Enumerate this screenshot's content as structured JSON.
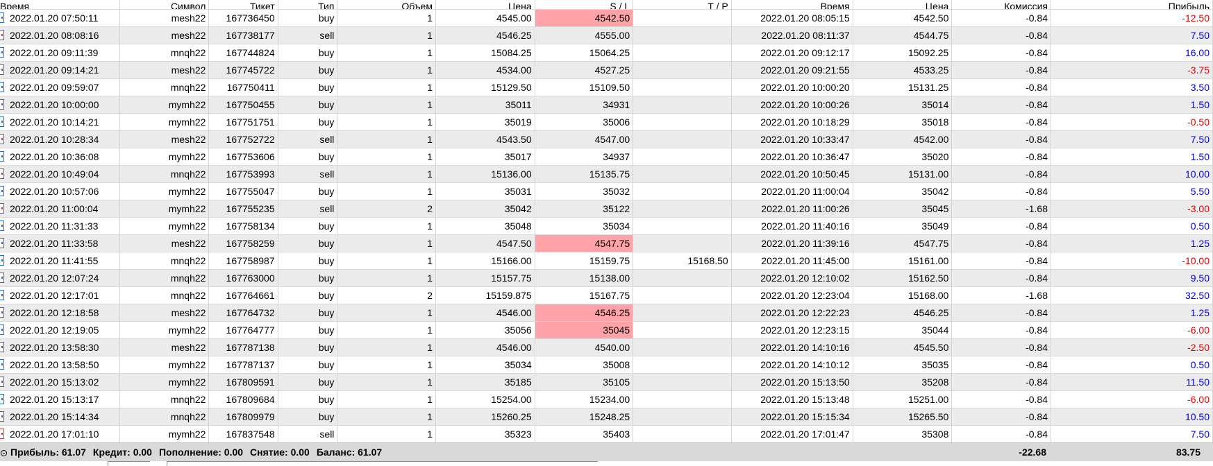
{
  "columns": [
    "Время",
    "Символ",
    "Тикет",
    "Тип",
    "Объем",
    "Цена",
    "S / L",
    "T / P",
    "Время",
    "Цена",
    "Комиссия",
    "Прибыль"
  ],
  "rows": [
    {
      "time": "2022.01.20 07:50:11",
      "symbol": "mesh22",
      "ticket": "167736450",
      "type": "buy",
      "volume": "1",
      "price": "4545.00",
      "sl": "4542.50",
      "tp": "",
      "close_time": "2022.01.20 08:05:15",
      "close_price": "4542.50",
      "commission": "-0.84",
      "profit": "-12.50",
      "sl_hit": true
    },
    {
      "time": "2022.01.20 08:08:16",
      "symbol": "mesh22",
      "ticket": "167738177",
      "type": "sell",
      "volume": "1",
      "price": "4546.25",
      "sl": "4555.00",
      "tp": "",
      "close_time": "2022.01.20 08:11:37",
      "close_price": "4544.75",
      "commission": "-0.84",
      "profit": "7.50",
      "sl_hit": false
    },
    {
      "time": "2022.01.20 09:11:39",
      "symbol": "mnqh22",
      "ticket": "167744824",
      "type": "buy",
      "volume": "1",
      "price": "15084.25",
      "sl": "15064.25",
      "tp": "",
      "close_time": "2022.01.20 09:12:17",
      "close_price": "15092.25",
      "commission": "-0.84",
      "profit": "16.00",
      "sl_hit": false
    },
    {
      "time": "2022.01.20 09:14:21",
      "symbol": "mesh22",
      "ticket": "167745722",
      "type": "buy",
      "volume": "1",
      "price": "4534.00",
      "sl": "4527.25",
      "tp": "",
      "close_time": "2022.01.20 09:21:55",
      "close_price": "4533.25",
      "commission": "-0.84",
      "profit": "-3.75",
      "sl_hit": false
    },
    {
      "time": "2022.01.20 09:59:07",
      "symbol": "mnqh22",
      "ticket": "167750411",
      "type": "buy",
      "volume": "1",
      "price": "15129.50",
      "sl": "15109.50",
      "tp": "",
      "close_time": "2022.01.20 10:00:20",
      "close_price": "15131.25",
      "commission": "-0.84",
      "profit": "3.50",
      "sl_hit": false
    },
    {
      "time": "2022.01.20 10:00:00",
      "symbol": "mymh22",
      "ticket": "167750455",
      "type": "buy",
      "volume": "1",
      "price": "35011",
      "sl": "34931",
      "tp": "",
      "close_time": "2022.01.20 10:00:26",
      "close_price": "35014",
      "commission": "-0.84",
      "profit": "1.50",
      "sl_hit": false
    },
    {
      "time": "2022.01.20 10:14:21",
      "symbol": "mymh22",
      "ticket": "167751751",
      "type": "buy",
      "volume": "1",
      "price": "35019",
      "sl": "35006",
      "tp": "",
      "close_time": "2022.01.20 10:18:29",
      "close_price": "35018",
      "commission": "-0.84",
      "profit": "-0.50",
      "sl_hit": false
    },
    {
      "time": "2022.01.20 10:28:34",
      "symbol": "mesh22",
      "ticket": "167752722",
      "type": "sell",
      "volume": "1",
      "price": "4543.50",
      "sl": "4547.00",
      "tp": "",
      "close_time": "2022.01.20 10:33:47",
      "close_price": "4542.00",
      "commission": "-0.84",
      "profit": "7.50",
      "sl_hit": false
    },
    {
      "time": "2022.01.20 10:36:08",
      "symbol": "mymh22",
      "ticket": "167753606",
      "type": "buy",
      "volume": "1",
      "price": "35017",
      "sl": "34937",
      "tp": "",
      "close_time": "2022.01.20 10:36:47",
      "close_price": "35020",
      "commission": "-0.84",
      "profit": "1.50",
      "sl_hit": false
    },
    {
      "time": "2022.01.20 10:49:04",
      "symbol": "mnqh22",
      "ticket": "167753993",
      "type": "sell",
      "volume": "1",
      "price": "15136.00",
      "sl": "15135.75",
      "tp": "",
      "close_time": "2022.01.20 10:50:45",
      "close_price": "15131.00",
      "commission": "-0.84",
      "profit": "10.00",
      "sl_hit": false
    },
    {
      "time": "2022.01.20 10:57:06",
      "symbol": "mymh22",
      "ticket": "167755047",
      "type": "buy",
      "volume": "1",
      "price": "35031",
      "sl": "35032",
      "tp": "",
      "close_time": "2022.01.20 11:00:04",
      "close_price": "35042",
      "commission": "-0.84",
      "profit": "5.50",
      "sl_hit": false
    },
    {
      "time": "2022.01.20 11:00:04",
      "symbol": "mymh22",
      "ticket": "167755235",
      "type": "sell",
      "volume": "2",
      "price": "35042",
      "sl": "35122",
      "tp": "",
      "close_time": "2022.01.20 11:00:26",
      "close_price": "35045",
      "commission": "-1.68",
      "profit": "-3.00",
      "sl_hit": false
    },
    {
      "time": "2022.01.20 11:31:33",
      "symbol": "mymh22",
      "ticket": "167758134",
      "type": "buy",
      "volume": "1",
      "price": "35048",
      "sl": "35034",
      "tp": "",
      "close_time": "2022.01.20 11:40:16",
      "close_price": "35049",
      "commission": "-0.84",
      "profit": "0.50",
      "sl_hit": false
    },
    {
      "time": "2022.01.20 11:33:58",
      "symbol": "mesh22",
      "ticket": "167758259",
      "type": "buy",
      "volume": "1",
      "price": "4547.50",
      "sl": "4547.75",
      "tp": "",
      "close_time": "2022.01.20 11:39:16",
      "close_price": "4547.75",
      "commission": "-0.84",
      "profit": "1.25",
      "sl_hit": true
    },
    {
      "time": "2022.01.20 11:41:55",
      "symbol": "mnqh22",
      "ticket": "167758987",
      "type": "buy",
      "volume": "1",
      "price": "15166.00",
      "sl": "15159.75",
      "tp": "15168.50",
      "close_time": "2022.01.20 11:45:00",
      "close_price": "15161.00",
      "commission": "-0.84",
      "profit": "-10.00",
      "sl_hit": false
    },
    {
      "time": "2022.01.20 12:07:24",
      "symbol": "mnqh22",
      "ticket": "167763000",
      "type": "buy",
      "volume": "1",
      "price": "15157.75",
      "sl": "15138.00",
      "tp": "",
      "close_time": "2022.01.20 12:10:02",
      "close_price": "15162.50",
      "commission": "-0.84",
      "profit": "9.50",
      "sl_hit": false
    },
    {
      "time": "2022.01.20 12:17:01",
      "symbol": "mnqh22",
      "ticket": "167764661",
      "type": "buy",
      "volume": "2",
      "price": "15159.875",
      "sl": "15167.75",
      "tp": "",
      "close_time": "2022.01.20 12:23:04",
      "close_price": "15168.00",
      "commission": "-1.68",
      "profit": "32.50",
      "sl_hit": false
    },
    {
      "time": "2022.01.20 12:18:58",
      "symbol": "mesh22",
      "ticket": "167764732",
      "type": "buy",
      "volume": "1",
      "price": "4546.00",
      "sl": "4546.25",
      "tp": "",
      "close_time": "2022.01.20 12:22:23",
      "close_price": "4546.25",
      "commission": "-0.84",
      "profit": "1.25",
      "sl_hit": true
    },
    {
      "time": "2022.01.20 12:19:05",
      "symbol": "mymh22",
      "ticket": "167764777",
      "type": "buy",
      "volume": "1",
      "price": "35056",
      "sl": "35045",
      "tp": "",
      "close_time": "2022.01.20 12:23:15",
      "close_price": "35044",
      "commission": "-0.84",
      "profit": "-6.00",
      "sl_hit": true
    },
    {
      "time": "2022.01.20 13:58:30",
      "symbol": "mesh22",
      "ticket": "167787138",
      "type": "buy",
      "volume": "1",
      "price": "4546.00",
      "sl": "4540.00",
      "tp": "",
      "close_time": "2022.01.20 14:10:16",
      "close_price": "4545.50",
      "commission": "-0.84",
      "profit": "-2.50",
      "sl_hit": false
    },
    {
      "time": "2022.01.20 13:58:50",
      "symbol": "mymh22",
      "ticket": "167787137",
      "type": "buy",
      "volume": "1",
      "price": "35034",
      "sl": "35008",
      "tp": "",
      "close_time": "2022.01.20 14:10:12",
      "close_price": "35035",
      "commission": "-0.84",
      "profit": "0.50",
      "sl_hit": false
    },
    {
      "time": "2022.01.20 15:13:02",
      "symbol": "mymh22",
      "ticket": "167809591",
      "type": "buy",
      "volume": "1",
      "price": "35185",
      "sl": "35105",
      "tp": "",
      "close_time": "2022.01.20 15:13:50",
      "close_price": "35208",
      "commission": "-0.84",
      "profit": "11.50",
      "sl_hit": false
    },
    {
      "time": "2022.01.20 15:13:17",
      "symbol": "mnqh22",
      "ticket": "167809684",
      "type": "buy",
      "volume": "1",
      "price": "15254.00",
      "sl": "15234.00",
      "tp": "",
      "close_time": "2022.01.20 15:13:48",
      "close_price": "15251.00",
      "commission": "-0.84",
      "profit": "-6.00",
      "sl_hit": false
    },
    {
      "time": "2022.01.20 15:14:34",
      "symbol": "mnqh22",
      "ticket": "167809979",
      "type": "buy",
      "volume": "1",
      "price": "15260.25",
      "sl": "15248.25",
      "tp": "",
      "close_time": "2022.01.20 15:15:34",
      "close_price": "15265.50",
      "commission": "-0.84",
      "profit": "10.50",
      "sl_hit": false
    },
    {
      "time": "2022.01.20 17:01:10",
      "symbol": "mymh22",
      "ticket": "167837548",
      "type": "sell",
      "volume": "1",
      "price": "35323",
      "sl": "35403",
      "tp": "",
      "close_time": "2022.01.20 17:01:47",
      "close_price": "35308",
      "commission": "-0.84",
      "profit": "7.50",
      "sl_hit": false
    }
  ],
  "summary": {
    "profit": "Прибыль: 61.07",
    "credit": "Кредит: 0.00",
    "deposit": "Пополнение: 0.00",
    "withdrawal": "Снятие: 0.00",
    "balance": "Баланс: 61.07",
    "total_commission": "-22.68",
    "total_profit": "83.75"
  },
  "colors": {
    "row_alt": "#ebebeb",
    "sl_highlight": "#ffa3a8",
    "loss": "#e00000",
    "gain": "#0000e6",
    "summary_bg": "#d9d9d9"
  }
}
